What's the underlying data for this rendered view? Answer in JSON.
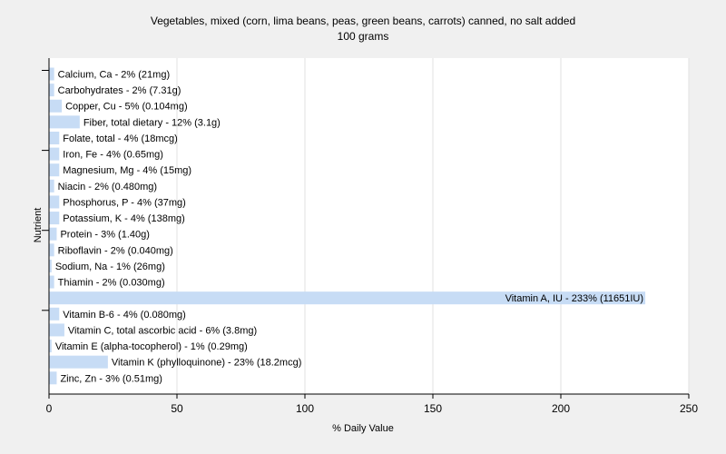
{
  "chart_data": {
    "type": "bar",
    "orientation": "horizontal",
    "title": "Vegetables, mixed (corn, lima beans, peas, green beans, carrots) canned, no salt added",
    "subtitle": "100 grams",
    "xlabel": "% Daily Value",
    "ylabel": "Nutrient",
    "xlim": [
      0,
      250
    ],
    "xticks": [
      0,
      50,
      100,
      150,
      200,
      250
    ],
    "grid": true,
    "bar_color": "#c7dcf5",
    "plot_background": "#ffffff",
    "categories": [
      "Calcium, Ca",
      "Carbohydrates",
      "Copper, Cu",
      "Fiber, total dietary",
      "Folate, total",
      "Iron, Fe",
      "Magnesium, Mg",
      "Niacin",
      "Phosphorus, P",
      "Potassium, K",
      "Protein",
      "Riboflavin",
      "Sodium, Na",
      "Thiamin",
      "Vitamin A, IU",
      "Vitamin B-6",
      "Vitamin C, total ascorbic acid",
      "Vitamin E (alpha-tocopherol)",
      "Vitamin K (phylloquinone)",
      "Zinc, Zn"
    ],
    "values": [
      2,
      2,
      5,
      12,
      4,
      4,
      4,
      2,
      4,
      4,
      3,
      2,
      1,
      2,
      233,
      4,
      6,
      1,
      23,
      3
    ],
    "labels": [
      "Calcium, Ca - 2% (21mg)",
      "Carbohydrates - 2% (7.31g)",
      "Copper, Cu - 5% (0.104mg)",
      "Fiber, total dietary - 12% (3.1g)",
      "Folate, total - 4% (18mcg)",
      "Iron, Fe - 4% (0.65mg)",
      "Magnesium, Mg - 4% (15mg)",
      "Niacin - 2% (0.480mg)",
      "Phosphorus, P - 4% (37mg)",
      "Potassium, K - 4% (138mg)",
      "Protein - 3% (1.40g)",
      "Riboflavin - 2% (0.040mg)",
      "Sodium, Na - 1% (26mg)",
      "Thiamin - 2% (0.030mg)",
      "Vitamin A, IU - 233% (11651IU)",
      "Vitamin B-6 - 4% (0.080mg)",
      "Vitamin C, total ascorbic acid - 6% (3.8mg)",
      "Vitamin E (alpha-tocopherol) - 1% (0.29mg)",
      "Vitamin K (phylloquinone) - 23% (18.2mcg)",
      "Zinc, Zn - 3% (0.51mg)"
    ]
  }
}
